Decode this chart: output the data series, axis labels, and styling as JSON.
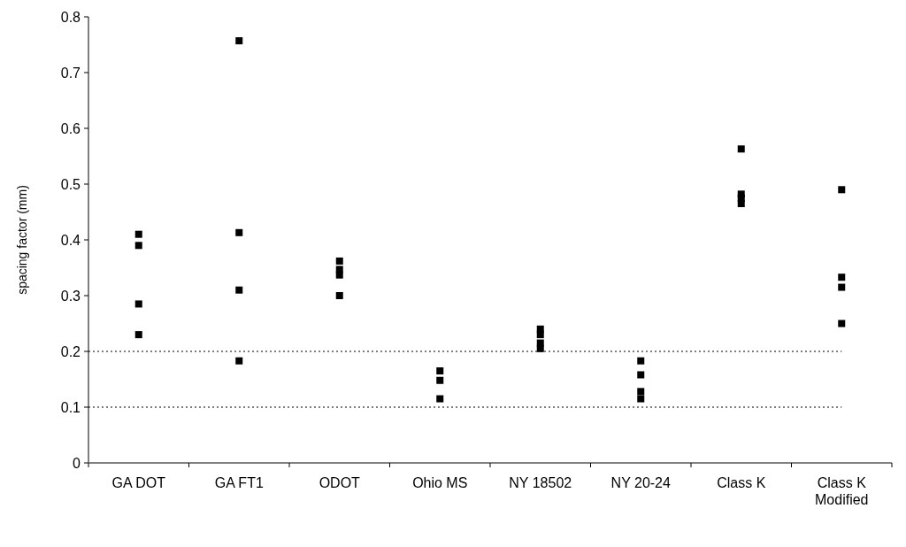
{
  "chart_data": {
    "type": "scatter",
    "ylabel": "spacing factor (mm)",
    "categories": [
      "GA DOT",
      "GA FT1",
      "ODOT",
      "Ohio MS",
      "NY 18502",
      "NY 20-24",
      "Class K",
      "Class K Modified"
    ],
    "series": [
      {
        "color": "#000000",
        "marker": "square",
        "x": [
          "GA DOT",
          "GA DOT",
          "GA DOT",
          "GA DOT",
          "GA FT1",
          "GA FT1",
          "GA FT1",
          "GA FT1",
          "ODOT",
          "ODOT",
          "ODOT",
          "ODOT",
          "Ohio MS",
          "Ohio MS",
          "Ohio MS",
          "NY 18502",
          "NY 18502",
          "NY 18502",
          "NY 18502",
          "NY 20-24",
          "NY 20-24",
          "NY 20-24",
          "NY 20-24",
          "Class K",
          "Class K",
          "Class K",
          "Class K",
          "Class K Modified",
          "Class K Modified",
          "Class K Modified",
          "Class K Modified"
        ],
        "values": [
          0.41,
          0.39,
          0.285,
          0.23,
          0.757,
          0.413,
          0.31,
          0.183,
          0.362,
          0.347,
          0.337,
          0.3,
          0.165,
          0.148,
          0.115,
          0.24,
          0.23,
          0.215,
          0.205,
          0.183,
          0.158,
          0.128,
          0.115,
          0.563,
          0.482,
          0.475,
          0.465,
          0.49,
          0.333,
          0.315,
          0.25
        ]
      }
    ],
    "ylim": [
      0,
      0.8
    ],
    "yticks": [
      0,
      0.1,
      0.2,
      0.3,
      0.4,
      0.5,
      0.6,
      0.7,
      0.8
    ],
    "ref_lines": [
      {
        "axis": "y",
        "value": 0.2,
        "line_style": "dotted"
      },
      {
        "axis": "y",
        "value": 0.1,
        "line_style": "dotted"
      }
    ],
    "grid": false
  }
}
